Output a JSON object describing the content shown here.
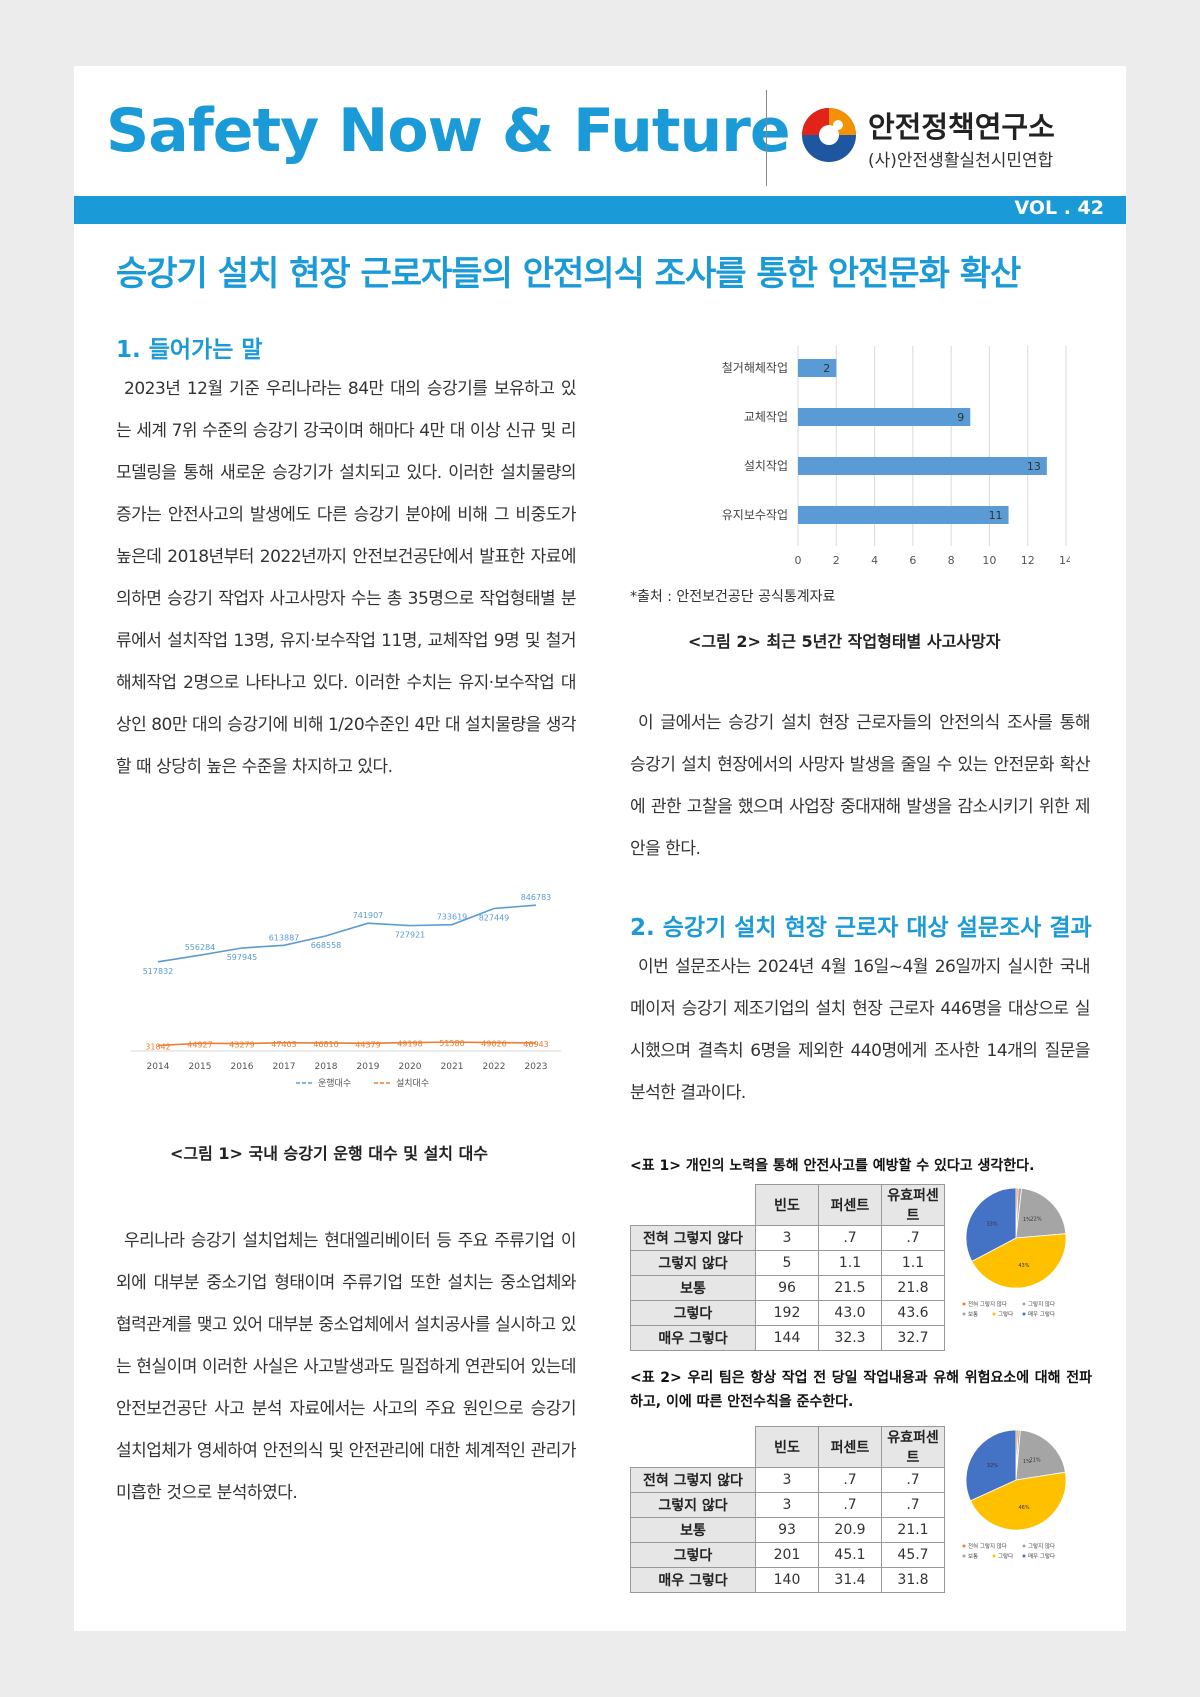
{
  "header": {
    "title": "Safety Now & Future",
    "org_name": "안전정책연구소",
    "org_sub": "(사)안전생활실천시민연합",
    "volume": "VOL . 42"
  },
  "article": {
    "title": "승강기 설치 현장 근로자들의 안전의식 조사를 통한 안전문화 확산",
    "section1_heading": "1. 들어가는 말",
    "section1_p1": "2023년 12월 기준 우리나라는 84만 대의 승강기를 보유하고 있는 세계 7위 수준의 승강기 강국이며 해마다 4만 대 이상 신규 및 리모델링을 통해 새로운 승강기가 설치되고 있다. 이러한 설치물량의 증가는 안전사고의 발생에도 다른 승강기 분야에 비해 그 비중도가 높은데 2018년부터 2022년까지 안전보건공단에서 발표한 자료에 의하면 승강기 작업자 사고사망자 수는 총 35명으로 작업형태별 분류에서 설치작업 13명, 유지·보수작업 11명, 교체작업 9명 및 철거 해체작업 2명으로 나타나고 있다. 이러한 수치는 유지·보수작업 대상인 80만 대의 승강기에 비해 1/20수준인 4만 대 설치물량을 생각할 때 상당히 높은 수준을 차지하고 있다.",
    "figure1_caption": "<그림 1> 국내 승강기 운행 대수 및 설치 대수",
    "section1_p2": "우리나라 승강기 설치업체는 현대엘리베이터 등 주요 주류기업 이외에 대부분 중소기업 형태이며 주류기업 또한 설치는 중소업체와 협력관계를 맺고 있어 대부분 중소업체에서 설치공사를 실시하고 있는 현실이며 이러한 사실은 사고발생과도 밀접하게 연관되어 있는데 안전보건공단 사고 분석 자료에서는 사고의 주요 원인으로 승강기 설치업체가 영세하여 안전의식 및 안전관리에 대한 체계적인 관리가 미흡한 것으로 분석하였다.",
    "figure2_source": "*출처 : 안전보건공단 공식통계자료",
    "figure2_caption": "<그림 2> 최근 5년간 작업형태별 사고사망자",
    "right_p1": "이 글에서는 승강기 설치 현장 근로자들의 안전의식 조사를 통해 승강기 설치 현장에서의 사망자 발생을 줄일 수 있는 안전문화 확산에 관한 고찰을 했으며 사업장 중대재해 발생을 감소시키기 위한 제안을 한다.",
    "section2_heading": "2. 승강기 설치 현장 근로자 대상 설문조사 결과",
    "section2_p1": "이번 설문조사는 2024년 4월 16일~4월 26일까지 실시한 국내 메이저 승강기 제조기업의 설치 현장 근로자 446명을 대상으로 실시했으며 결측치 6명을 제외한 440명에게 조사한 14개의 질문을 분석한 결과이다."
  },
  "tables": [
    {
      "title": "<표 1> 개인의 노력을 통해 안전사고를 예방할 수 있다고 생각한다.",
      "headers": [
        "빈도",
        "퍼센트",
        "유효퍼센트"
      ],
      "rows": [
        {
          "label": "전혀 그렇지 않다",
          "freq": "3",
          "pct": ".7",
          "valid": ".7"
        },
        {
          "label": "그렇지 않다",
          "freq": "5",
          "pct": "1.1",
          "valid": "1.1"
        },
        {
          "label": "보통",
          "freq": "96",
          "pct": "21.5",
          "valid": "21.8"
        },
        {
          "label": "그렇다",
          "freq": "192",
          "pct": "43.0",
          "valid": "43.6"
        },
        {
          "label": "매우 그렇다",
          "freq": "144",
          "pct": "32.3",
          "valid": "32.7"
        }
      ],
      "pie_labels": [
        "1%",
        "22%",
        "43%",
        "33%"
      ],
      "pie_values": [
        0.7,
        1.1,
        21.8,
        43.6,
        32.7
      ]
    },
    {
      "title": "<표 2> 우리 팀은 항상 작업 전 당일 작업내용과 유해 위험요소에 대해 전파하고, 이에 따른 안전수칙을 준수한다.",
      "headers": [
        "빈도",
        "퍼센트",
        "유효퍼센트"
      ],
      "rows": [
        {
          "label": "전혀 그렇지 않다",
          "freq": "3",
          "pct": ".7",
          "valid": ".7"
        },
        {
          "label": "그렇지 않다",
          "freq": "3",
          "pct": ".7",
          "valid": ".7"
        },
        {
          "label": "보통",
          "freq": "93",
          "pct": "20.9",
          "valid": "21.1"
        },
        {
          "label": "그렇다",
          "freq": "201",
          "pct": "45.1",
          "valid": "45.7"
        },
        {
          "label": "매우 그렇다",
          "freq": "140",
          "pct": "31.4",
          "valid": "31.8"
        }
      ],
      "pie_labels": [
        "1%",
        "21%",
        "46%",
        "32%"
      ],
      "pie_values": [
        0.7,
        0.7,
        21.1,
        45.7,
        31.8
      ]
    }
  ],
  "pie_legend": [
    "전혀 그렇지 않다",
    "그렇지 않다",
    "보통",
    "그렇다",
    "매우 그렇다"
  ],
  "colors": {
    "brand_blue": "#1a9ad6",
    "bar_blue": "#5b9bd5",
    "line_orange": "#ed7d31",
    "pie": [
      "#ed7d31",
      "#a5a5a5",
      "#a5a5a5",
      "#ffc000",
      "#4472c4"
    ]
  },
  "chart_data": [
    {
      "type": "line",
      "x": [
        "2014",
        "2015",
        "2016",
        "2017",
        "2018",
        "2019",
        "2020",
        "2021",
        "2022",
        "2023"
      ],
      "series": [
        {
          "name": "운행대수",
          "values": [
            517832,
            556284,
            597945,
            613887,
            668558,
            741907,
            727921,
            733619,
            827449,
            846783
          ]
        },
        {
          "name": "설치대수",
          "values": [
            31842,
            44927,
            43279,
            47403,
            46810,
            44379,
            49198,
            51580,
            49026,
            46943
          ]
        }
      ],
      "legend": "bottom"
    },
    {
      "type": "bar",
      "orientation": "horizontal",
      "categories": [
        "철거해체작업",
        "교체작업",
        "설치작업",
        "유지보수작업"
      ],
      "values": [
        2,
        9,
        13,
        11
      ],
      "xlim": [
        0,
        14
      ],
      "xticks": [
        "0",
        "2",
        "4",
        "6",
        "8",
        "10",
        "12",
        "14"
      ]
    }
  ]
}
